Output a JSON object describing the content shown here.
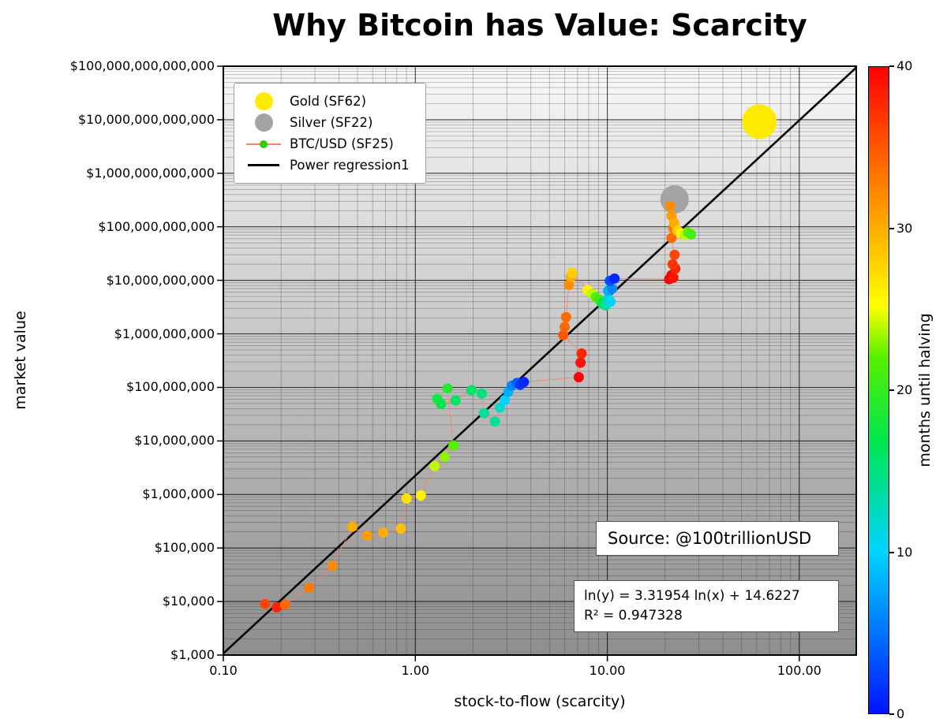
{
  "title": "Why Bitcoin has Value: Scarcity",
  "chart_data": {
    "type": "scatter",
    "title": "Why Bitcoin has Value: Scarcity",
    "xlabel": "stock-to-flow (scarcity)",
    "ylabel": "market value",
    "x_scale": "log",
    "y_scale": "log",
    "grid": "both",
    "x_range": [
      0.1,
      198
    ],
    "y_range": [
      1000.0,
      100000000000000.0
    ],
    "x_ticks": {
      "values": [
        0.1,
        1,
        10,
        100
      ],
      "labels": [
        "0.10",
        "1.00",
        "10.00",
        "100.00"
      ]
    },
    "y_ticks": {
      "values": [
        1000.0,
        10000.0,
        100000.0,
        1000000.0,
        10000000.0,
        100000000.0,
        1000000000.0,
        10000000000.0,
        100000000000.0,
        1000000000000.0,
        10000000000000.0,
        100000000000000.0
      ],
      "labels": [
        "$1,000",
        "$10,000",
        "$100,000",
        "$1,000,000",
        "$10,000,000",
        "$100,000,000",
        "$1,000,000,000",
        "$10,000,000,000",
        "$100,000,000,000",
        "$1,000,000,000,000",
        "$10,000,000,000,000",
        "$100,000,000,000,000"
      ]
    },
    "regression": {
      "slope": 3.31954,
      "intercept": 14.6227,
      "r2": 0.947328
    },
    "series": [
      {
        "name": "Gold (SF62)",
        "color": "#FFEB00",
        "diameter": 44,
        "points": [
          [
            62,
            9200000000000.0
          ]
        ]
      },
      {
        "name": "Silver (SF22)",
        "color": "#A3A3A3",
        "diameter": 36,
        "points": [
          [
            22.4,
            325000000000.0
          ]
        ]
      },
      {
        "name": "BTC/USD (SF25)",
        "line_color": "#FF8060",
        "dot_radius": 6.5,
        "color_by": "months_until_halving",
        "points": [
          [
            0.165,
            9000,
            36
          ],
          [
            0.19,
            7800,
            38
          ],
          [
            0.21,
            8800,
            34
          ],
          [
            0.28,
            18000,
            33
          ],
          [
            0.37,
            46000,
            32
          ],
          [
            0.47,
            250000,
            30
          ],
          [
            0.56,
            170000,
            31
          ],
          [
            0.68,
            195000,
            30
          ],
          [
            0.84,
            230000,
            29
          ],
          [
            0.9,
            840000,
            27
          ],
          [
            1.07,
            960000,
            26
          ],
          [
            1.26,
            3400000.0,
            24
          ],
          [
            1.42,
            5000000.0,
            23
          ],
          [
            1.58,
            8200000.0,
            22
          ],
          [
            1.47,
            96000000.0,
            19
          ],
          [
            1.3,
            61000000.0,
            18
          ],
          [
            1.36,
            49000000.0,
            17
          ],
          [
            1.62,
            57000000.0,
            16
          ],
          [
            1.96,
            89000000.0,
            16
          ],
          [
            2.22,
            77000000.0,
            15
          ],
          [
            2.28,
            33000000.0,
            14
          ],
          [
            2.6,
            23000000.0,
            14
          ],
          [
            2.76,
            42000000.0,
            12
          ],
          [
            2.92,
            58000000.0,
            10
          ],
          [
            3.05,
            82000000.0,
            8
          ],
          [
            3.18,
            108000000.0,
            6
          ],
          [
            3.38,
            121000000.0,
            4
          ],
          [
            3.52,
            112000000.0,
            2
          ],
          [
            3.68,
            126000000.0,
            1
          ],
          [
            7.1,
            155000000.0,
            40
          ],
          [
            7.25,
            290000000.0,
            39
          ],
          [
            7.35,
            430000000.0,
            38
          ],
          [
            5.9,
            950000000.0,
            35
          ],
          [
            6.0,
            1350000000.0,
            34
          ],
          [
            6.1,
            2050000000.0,
            34
          ],
          [
            6.3,
            8200000000.0,
            32
          ],
          [
            6.45,
            11500000000.0,
            30
          ],
          [
            6.55,
            13800000000.0,
            28
          ],
          [
            7.9,
            6600000000.0,
            26
          ],
          [
            8.3,
            5600000000.0,
            24
          ],
          [
            8.7,
            4900000000.0,
            22
          ],
          [
            9.1,
            4300000000.0,
            20
          ],
          [
            9.4,
            3700000000.0,
            17
          ],
          [
            9.8,
            3400000000.0,
            14
          ],
          [
            10.1,
            4600000000.0,
            12
          ],
          [
            10.4,
            4000000000.0,
            10
          ],
          [
            10.1,
            6400000000.0,
            8
          ],
          [
            10.6,
            7000000000.0,
            6
          ],
          [
            10.3,
            9800000000.0,
            3
          ],
          [
            10.9,
            10800000000.0,
            1
          ],
          [
            21.0,
            10500000000.0,
            40
          ],
          [
            21.6,
            12500000000.0,
            40
          ],
          [
            22.1,
            11200000000.0,
            39
          ],
          [
            22.6,
            16500000000.0,
            38
          ],
          [
            21.9,
            20000000000.0,
            37
          ],
          [
            22.4,
            30000000000.0,
            36
          ],
          [
            21.6,
            62000000000.0,
            34
          ],
          [
            22.0,
            95000000000.0,
            33
          ],
          [
            21.2,
            245000000000.0,
            32
          ],
          [
            21.6,
            160000000000.0,
            31
          ],
          [
            22.3,
            118000000000.0,
            30
          ],
          [
            23.2,
            85000000000.0,
            28
          ],
          [
            24.2,
            76000000000.0,
            26
          ],
          [
            25.2,
            70000000000.0,
            24
          ],
          [
            26.3,
            79000000000.0,
            22
          ],
          [
            27.3,
            72000000000.0,
            21
          ]
        ]
      }
    ]
  },
  "legend": {
    "items": [
      {
        "name": "gold",
        "label": "Gold (SF62)",
        "marker": "dot",
        "color": "#FFEB00"
      },
      {
        "name": "silver",
        "label": "Silver (SF22)",
        "marker": "dot",
        "color": "#A3A3A3"
      },
      {
        "name": "btc",
        "label": "BTC/USD (SF25)",
        "marker": "line-dot",
        "color": "#2ECC00",
        "line_color": "#FF8060"
      },
      {
        "name": "regression",
        "label": "Power regression1",
        "marker": "line",
        "color": "#000000"
      }
    ]
  },
  "colorbar": {
    "label": "months until halving",
    "min": 0,
    "max": 40,
    "ticks": [
      0,
      10,
      20,
      30,
      40
    ],
    "stops": [
      [
        0.0,
        "#0014FF"
      ],
      [
        0.25,
        "#00D4FF"
      ],
      [
        0.42,
        "#00E650"
      ],
      [
        0.55,
        "#55F000"
      ],
      [
        0.63,
        "#FFFF00"
      ],
      [
        0.8,
        "#FF8C00"
      ],
      [
        1.0,
        "#FF0000"
      ]
    ]
  },
  "annotations": {
    "source": "Source: @100trillionUSD",
    "equation": "ln(y) = 3.31954 ln(x) + 14.6227",
    "r_squared": "R² = 0.947328"
  }
}
